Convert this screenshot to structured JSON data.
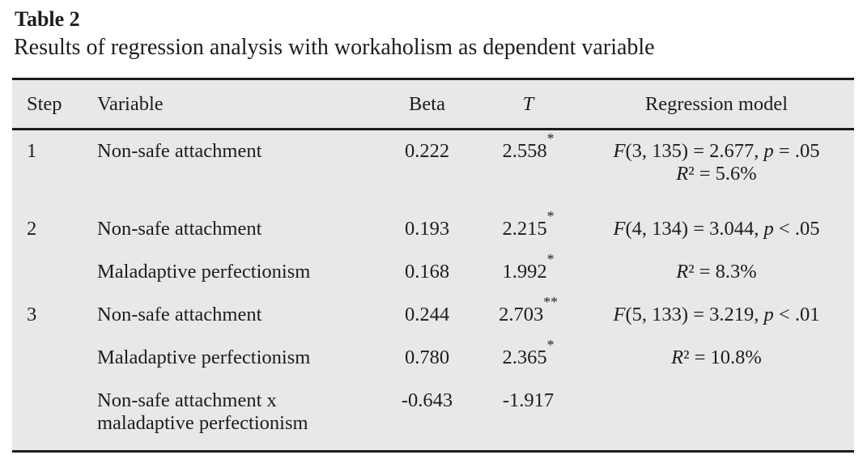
{
  "title": "Table 2",
  "caption": "Results of regression analysis with workaholism as dependent variable",
  "table": {
    "background": "#e8e8e8",
    "rule_color": "#1c1c1c",
    "headers": {
      "step": "Step",
      "variable": "Variable",
      "beta": "Beta",
      "t": "T",
      "model": "Regression model"
    },
    "rows": [
      {
        "step": "1",
        "variable": "Non-safe attachment",
        "variable2": "",
        "beta": "0.222",
        "t": "2.558",
        "t_sup": "*",
        "f_it1": "F",
        "f_txt1": "(3, 135) = 2.677, ",
        "f_it2": "p",
        "f_txt2": " = .05",
        "r2_var": "R",
        "r2_rest": "² = 5.6%"
      },
      {
        "step": "2",
        "variable": "Non-safe attachment",
        "variable2": "",
        "beta": "0.193",
        "t": "2.215",
        "t_sup": "*",
        "f_it1": "F",
        "f_txt1": "(4, 134) = 3.044, ",
        "f_it2": "p",
        "f_txt2": " < .05",
        "r2_var": "",
        "r2_rest": ""
      },
      {
        "step": "",
        "variable": "Maladaptive perfectionism",
        "variable2": "",
        "beta": "0.168",
        "t": "1.992",
        "t_sup": "*",
        "f_it1": "",
        "f_txt1": "",
        "f_it2": "",
        "f_txt2": "",
        "r2_var": "R",
        "r2_rest": "² = 8.3%"
      },
      {
        "step": "3",
        "variable": "Non-safe attachment",
        "variable2": "",
        "beta": "0.244",
        "t": "2.703",
        "t_sup": "**",
        "f_it1": "F",
        "f_txt1": "(5, 133) = 3.219, ",
        "f_it2": "p",
        "f_txt2": " < .01",
        "r2_var": "",
        "r2_rest": ""
      },
      {
        "step": "",
        "variable": "Maladaptive perfectionism",
        "variable2": "",
        "beta": "0.780",
        "t": "2.365",
        "t_sup": "*",
        "f_it1": "",
        "f_txt1": "",
        "f_it2": "",
        "f_txt2": "",
        "r2_var": "R",
        "r2_rest": "² = 10.8%"
      },
      {
        "step": "",
        "variable": "Non-safe attachment x",
        "variable2": "maladaptive perfectionism",
        "beta": "-0.643",
        "t": "-1.917",
        "t_sup": "",
        "f_it1": "",
        "f_txt1": "",
        "f_it2": "",
        "f_txt2": "",
        "r2_var": "",
        "r2_rest": ""
      }
    ]
  }
}
